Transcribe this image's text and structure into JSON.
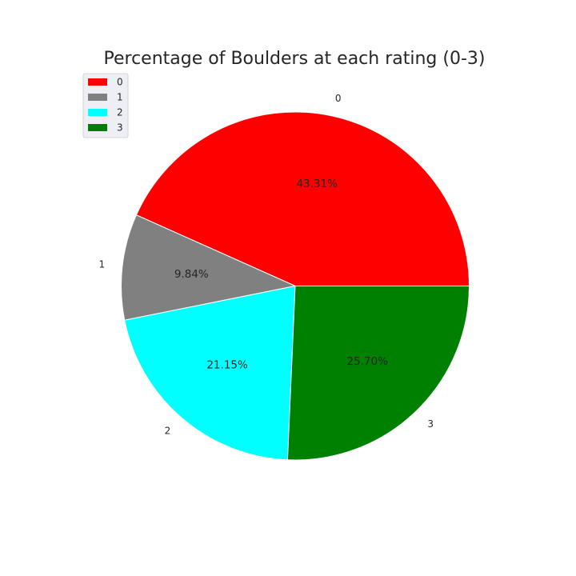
{
  "chart_data": {
    "type": "pie",
    "title": "Percentage of Boulders at each rating (0-3)",
    "categories": [
      "0",
      "1",
      "2",
      "3"
    ],
    "values": [
      43.31,
      9.84,
      21.15,
      25.7
    ],
    "percent_labels": [
      "43.31%",
      "9.84%",
      "21.15%",
      "25.70%"
    ],
    "colors": [
      "#ff0000",
      "#808080",
      "#00ffff",
      "#008000"
    ],
    "start_angle_deg": 0,
    "direction": "counterclockwise",
    "legend": {
      "placement": "upper-left",
      "entries": [
        "0",
        "1",
        "2",
        "3"
      ]
    }
  }
}
